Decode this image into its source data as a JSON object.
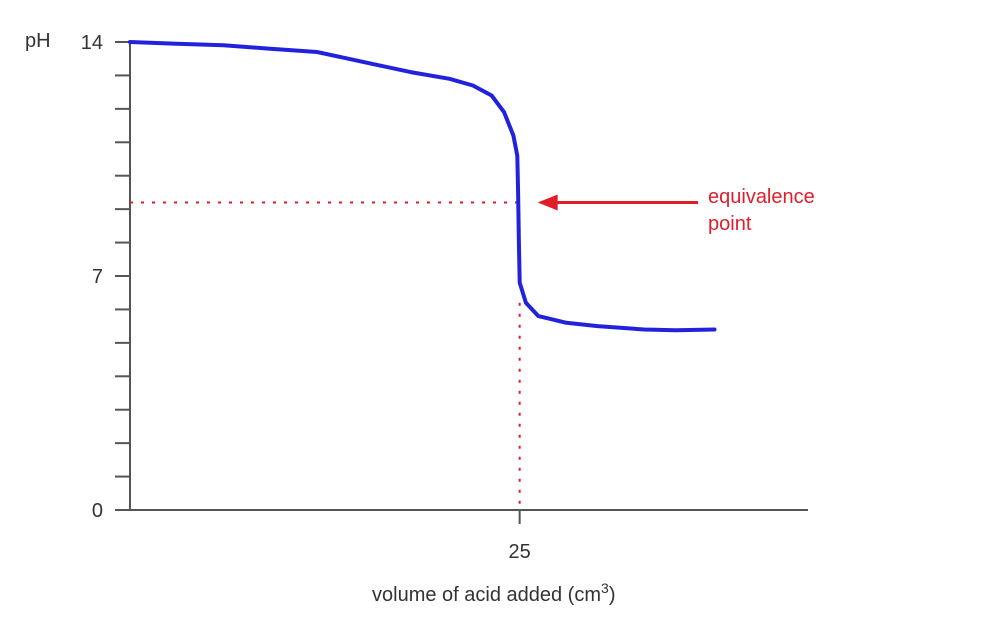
{
  "chart_data": {
    "type": "line",
    "ylabel": "pH",
    "xlabel": "volume of acid added (cm",
    "xlabel_superscript": "3",
    "xlabel_close": ")",
    "ylim": [
      0,
      14
    ],
    "xlim": [
      0,
      43.5
    ],
    "y_tick_labels": [
      "0",
      "7",
      "14"
    ],
    "y_tick_values": [
      0,
      7,
      14
    ],
    "y_minor_tick_step": 1,
    "x_tick_labels": [
      "25"
    ],
    "x_tick_values": [
      25
    ],
    "grid": false,
    "series": [
      {
        "color": "#2222dd",
        "points": [
          [
            0,
            14.0
          ],
          [
            3,
            13.95
          ],
          [
            6,
            13.9
          ],
          [
            9,
            13.8
          ],
          [
            12,
            13.7
          ],
          [
            14,
            13.5
          ],
          [
            16,
            13.3
          ],
          [
            18,
            13.1
          ],
          [
            20.5,
            12.9
          ],
          [
            22,
            12.7
          ],
          [
            23.2,
            12.4
          ],
          [
            24,
            11.9
          ],
          [
            24.6,
            11.2
          ],
          [
            24.85,
            10.6
          ],
          [
            24.9,
            9.5
          ],
          [
            24.95,
            8.0
          ],
          [
            25.0,
            6.8
          ],
          [
            25.4,
            6.2
          ],
          [
            26.2,
            5.8
          ],
          [
            28,
            5.6
          ],
          [
            30,
            5.5
          ],
          [
            33,
            5.4
          ],
          [
            35,
            5.38
          ],
          [
            37.5,
            5.4
          ]
        ]
      }
    ],
    "annotations": [
      {
        "text_line1": "equivalence",
        "text_line2": "point",
        "color": "#e11d2a",
        "target_x": 25,
        "target_y": 9.2
      }
    ]
  }
}
